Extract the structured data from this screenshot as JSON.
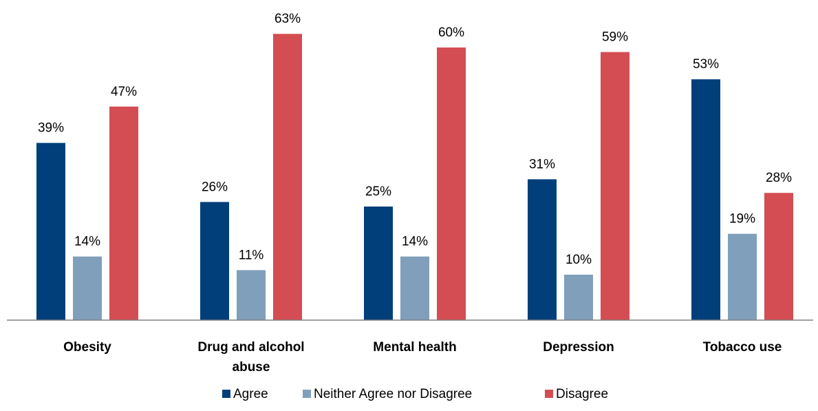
{
  "chart_data": {
    "type": "bar",
    "categories": [
      "Obesity",
      "Drug and alcohol abuse",
      "Mental health",
      "Depression",
      "Tobacco use"
    ],
    "category_lines": [
      [
        "Obesity"
      ],
      [
        "Drug and alcohol",
        "abuse"
      ],
      [
        "Mental health"
      ],
      [
        "Depression"
      ],
      [
        "Tobacco use"
      ]
    ],
    "series": [
      {
        "name": "Agree",
        "values": [
          39,
          26,
          25,
          31,
          53
        ],
        "labels": [
          "39%",
          "26%",
          "25%",
          "31%",
          "53%"
        ],
        "color": "#003f7a"
      },
      {
        "name": "Neither Agree nor Disagree",
        "values": [
          14,
          11,
          14,
          10,
          19
        ],
        "labels": [
          "14%",
          "11%",
          "14%",
          "10%",
          "19%"
        ],
        "color": "#809fba"
      },
      {
        "name": "Disagree",
        "values": [
          47,
          63,
          60,
          59,
          28
        ],
        "labels": [
          "47%",
          "63%",
          "60%",
          "59%",
          "28%"
        ],
        "color": "#d44d52"
      }
    ],
    "value_unit": "%",
    "title": "",
    "xlabel": "",
    "ylabel": "",
    "ylim": [
      0,
      63
    ],
    "grid": false,
    "legend_position": "bottom",
    "axis_color": "#808080"
  }
}
